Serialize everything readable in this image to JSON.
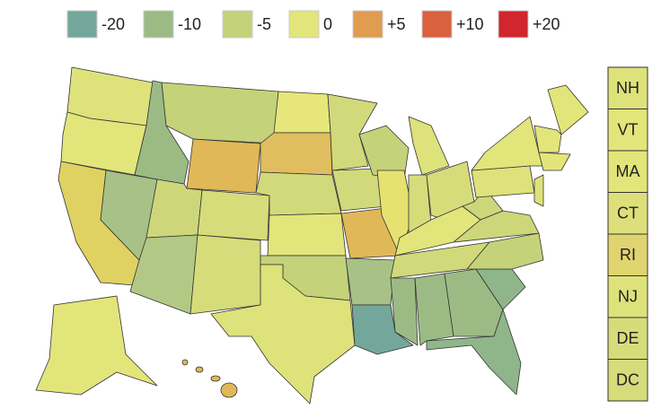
{
  "legend": [
    {
      "label": "-20",
      "color": "#74a79b"
    },
    {
      "label": "-10",
      "color": "#9cbb84"
    },
    {
      "label": "-5",
      "color": "#c4d27a"
    },
    {
      "label": "0",
      "color": "#e2e57a"
    },
    {
      "label": "+5",
      "color": "#e09c50"
    },
    {
      "label": "+10",
      "color": "#d9613e"
    },
    {
      "label": "+20",
      "color": "#d0262e"
    }
  ],
  "small_states": [
    {
      "label": "NH",
      "color": "#dde27a"
    },
    {
      "label": "VT",
      "color": "#e2e57a"
    },
    {
      "label": "MA",
      "color": "#e2e57a"
    },
    {
      "label": "CT",
      "color": "#dde07a"
    },
    {
      "label": "RI",
      "color": "#e0d470"
    },
    {
      "label": "NJ",
      "color": "#dde27a"
    },
    {
      "label": "DE",
      "color": "#d6dc7a"
    },
    {
      "label": "DC",
      "color": "#d6dc7a"
    }
  ]
}
